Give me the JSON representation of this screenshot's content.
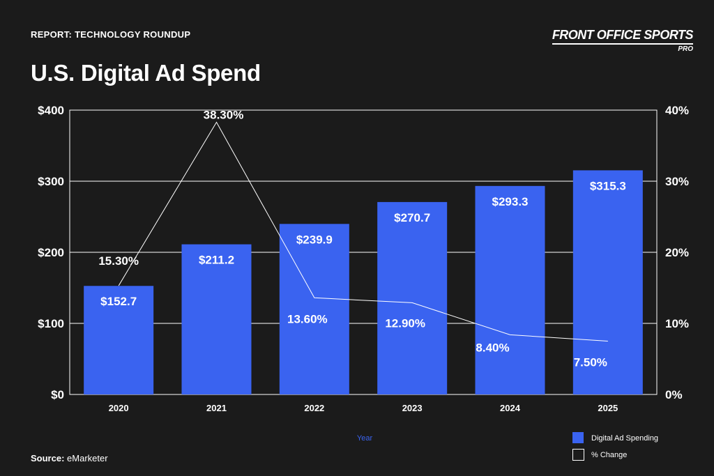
{
  "header": {
    "report_label": "REPORT: TECHNOLOGY ROUNDUP",
    "title": "U.S. Digital Ad Spend"
  },
  "brand": {
    "name": "FRONT OFFICE SPORTS",
    "sub": "PRO"
  },
  "source": {
    "label": "Source:",
    "value": "eMarketer"
  },
  "colors": {
    "background": "#1b1b1b",
    "bar": "#3a63f0",
    "line": "#ffffff",
    "grid": "#ffffff"
  },
  "chart_data": {
    "type": "bar",
    "xlabel": "Year",
    "categories": [
      "2020",
      "2021",
      "2022",
      "2023",
      "2024",
      "2025"
    ],
    "series": [
      {
        "name": "Digital Ad Spending",
        "type": "bar",
        "axis": "left",
        "values": [
          152.7,
          211.2,
          239.9,
          270.7,
          293.3,
          315.3
        ],
        "labels": [
          "$152.7",
          "$211.2",
          "$239.9",
          "$270.7",
          "$293.3",
          "$315.3"
        ]
      },
      {
        "name": "% Change",
        "type": "line",
        "axis": "right",
        "values": [
          15.3,
          38.3,
          13.6,
          12.9,
          8.4,
          7.5
        ],
        "labels": [
          "15.30%",
          "38.30%",
          "13.60%",
          "12.90%",
          "8.40%",
          "7.50%"
        ]
      }
    ],
    "y_left": {
      "ticks": [
        "$0",
        "$100",
        "$200",
        "$300",
        "$400"
      ],
      "lim": [
        0,
        400
      ]
    },
    "y_right": {
      "ticks": [
        "0%",
        "10%",
        "20%",
        "30%",
        "40%"
      ],
      "lim": [
        0,
        40
      ]
    },
    "grid": true,
    "legend_position": "bottom-right"
  }
}
